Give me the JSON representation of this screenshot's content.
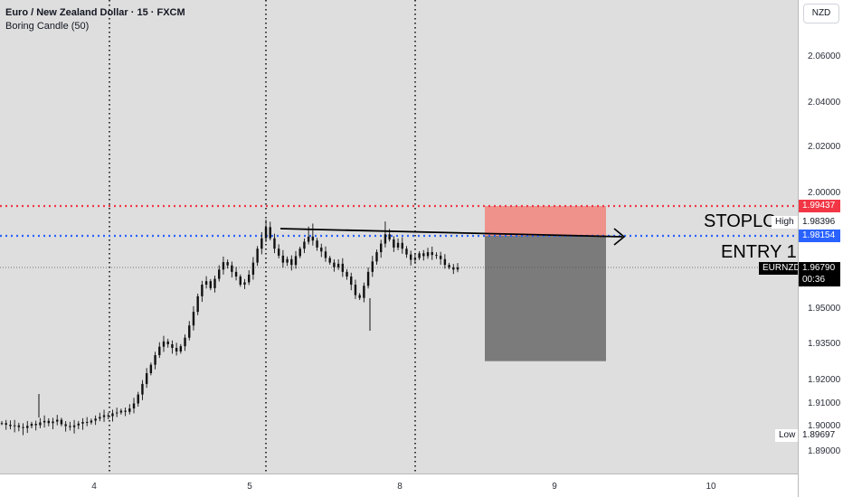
{
  "header": {
    "symbol_line": "Euro / New Zealand Dollar · 15 · FXCM",
    "indicator_line": "Boring Candle (50)"
  },
  "currency_button": "NZD",
  "y_axis": {
    "range": [
      1.885,
      2.07
    ],
    "ticks": [
      "2.06000",
      "2.04000",
      "2.02000",
      "2.00000",
      "1.95000",
      "1.93500",
      "1.92000",
      "1.91000",
      "1.90000",
      "1.89000"
    ]
  },
  "x_axis": {
    "ticks": [
      "4",
      "5",
      "8",
      "9",
      "10"
    ]
  },
  "price_tags": {
    "stop": {
      "value": "1.99437",
      "color": "#f23645"
    },
    "high": {
      "label": "High",
      "value": "1.98396"
    },
    "entry": {
      "value": "1.98154",
      "color": "#2962ff"
    },
    "current": {
      "symbol": "EURNZD",
      "value": "1.96790",
      "countdown": "00:36"
    },
    "low": {
      "label": "Low",
      "value": "1.89697"
    }
  },
  "annotations": {
    "stoploss_text": "STOPLOSS",
    "entry_text": "ENTRY 1"
  },
  "levels": {
    "stop_price": 1.99437,
    "entry_price": 1.98154,
    "current_price": 1.9679,
    "target_price": 1.928,
    "trendline_start": 1.9845,
    "trendline_end": 1.981
  },
  "colors": {
    "stop_line": "#f23645",
    "entry_line": "#2962ff",
    "risk_zone": "#f08a82",
    "reward_zone": "#7b7b7b"
  },
  "chart_data": {
    "type": "candlestick",
    "symbol": "EURNZD",
    "timeframe": "15",
    "series_closes": [
      1.9015,
      1.9008,
      1.9002,
      1.9005,
      1.8998,
      1.8995,
      1.9003,
      1.9012,
      1.9006,
      1.9018,
      1.9025,
      1.9015,
      1.9022,
      1.903,
      1.901,
      1.9002,
      1.8998,
      1.9005,
      1.9013,
      1.902,
      1.9018,
      1.9026,
      1.9035,
      1.9042,
      1.905,
      1.9046,
      1.9058,
      1.9062,
      1.907,
      1.9065,
      1.908,
      1.9102,
      1.914,
      1.9185,
      1.923,
      1.9265,
      1.9305,
      1.934,
      1.9362,
      1.935,
      1.9335,
      1.932,
      1.9342,
      1.9378,
      1.943,
      1.9488,
      1.9555,
      1.9605,
      1.962,
      1.959,
      1.963,
      1.967,
      1.9702,
      1.9688,
      1.966,
      1.964,
      1.9605,
      1.9615,
      1.9648,
      1.97,
      1.976,
      1.9805,
      1.983,
      1.9805,
      1.976,
      1.973,
      1.97,
      1.9715,
      1.969,
      1.9728,
      1.976,
      1.979,
      1.9812,
      1.9795,
      1.9765,
      1.9748,
      1.972,
      1.97,
      1.968,
      1.9695,
      1.966,
      1.964,
      1.9605,
      1.956,
      1.9548,
      1.96,
      1.966,
      1.9705,
      1.9745,
      1.9782,
      1.9818,
      1.98,
      1.9765,
      1.9785,
      1.976,
      1.9735,
      1.9712,
      1.972,
      1.974,
      1.9728,
      1.9745,
      1.9733,
      1.973,
      1.9715,
      1.969,
      1.968,
      1.967,
      1.9679
    ]
  }
}
